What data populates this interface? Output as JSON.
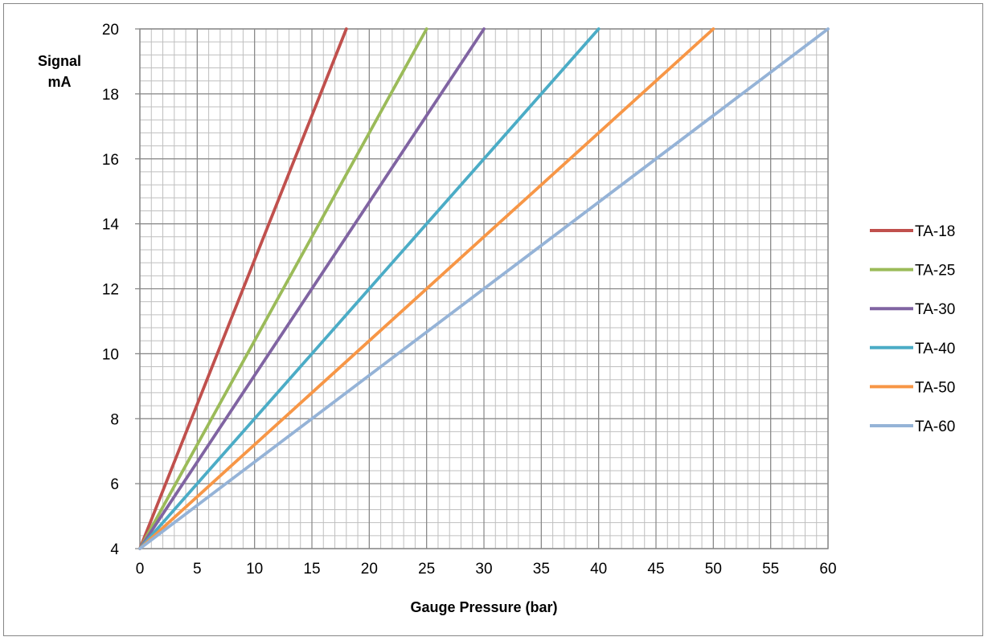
{
  "chart_data": {
    "type": "line",
    "xlabel": "Gauge Pressure (bar)",
    "ylabel_lines": [
      "Signal",
      "mA"
    ],
    "xlim": [
      0,
      60
    ],
    "ylim": [
      4,
      20
    ],
    "x_major_ticks": [
      0,
      5,
      10,
      15,
      20,
      25,
      30,
      35,
      40,
      45,
      50,
      55,
      60
    ],
    "y_major_ticks": [
      4,
      6,
      8,
      10,
      12,
      14,
      16,
      18,
      20
    ],
    "x_minor_step": 1,
    "y_minor_step": 0.4,
    "grid": true,
    "legend_position": "right",
    "series": [
      {
        "name": "TA-18",
        "color": "#C0504D",
        "points": [
          [
            0,
            4
          ],
          [
            18,
            20
          ]
        ]
      },
      {
        "name": "TA-25",
        "color": "#9BBB59",
        "points": [
          [
            0,
            4
          ],
          [
            25,
            20
          ]
        ]
      },
      {
        "name": "TA-30",
        "color": "#8064A2",
        "points": [
          [
            0,
            4
          ],
          [
            30,
            20
          ]
        ]
      },
      {
        "name": "TA-40",
        "color": "#4BACC6",
        "points": [
          [
            0,
            4
          ],
          [
            40,
            20
          ]
        ]
      },
      {
        "name": "TA-50",
        "color": "#F79646",
        "points": [
          [
            0,
            4
          ],
          [
            50,
            20
          ]
        ]
      },
      {
        "name": "TA-60",
        "color": "#95B3D7",
        "points": [
          [
            0,
            4
          ],
          [
            60,
            20
          ]
        ]
      }
    ]
  }
}
